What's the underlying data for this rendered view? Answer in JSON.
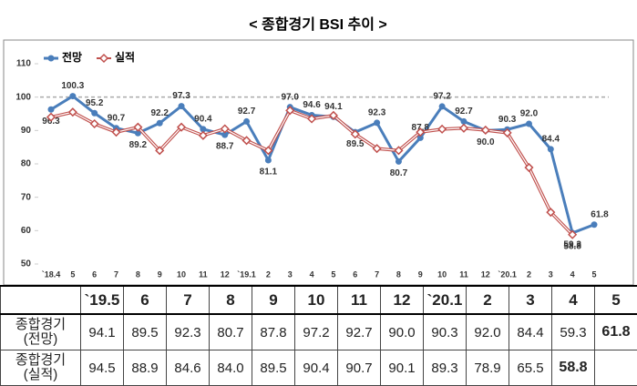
{
  "chart_data": {
    "type": "line",
    "title": "< 종합경기 BSI 추이 >",
    "categories": [
      "`18.4",
      "5",
      "6",
      "7",
      "8",
      "9",
      "10",
      "11",
      "12",
      "`19.1",
      "2",
      "3",
      "4",
      "5",
      "6",
      "7",
      "8",
      "9",
      "10",
      "11",
      "12",
      "`20.1",
      "2",
      "3",
      "4",
      "5"
    ],
    "ylim": [
      50,
      110
    ],
    "yticks": [
      50,
      60,
      70,
      80,
      90,
      100,
      110
    ],
    "reference_line": 100,
    "legend": "top-left",
    "series": [
      {
        "name": "전망",
        "color": "#4a7ebb",
        "marker": "circle",
        "values": [
          96.3,
          100.3,
          95.2,
          90.7,
          89.2,
          92.2,
          97.3,
          90.4,
          88.7,
          92.7,
          81.1,
          97.0,
          94.6,
          94.1,
          89.5,
          92.3,
          80.7,
          87.8,
          97.2,
          92.7,
          90.0,
          90.3,
          92.0,
          84.4,
          59.3,
          61.8
        ],
        "value_labels": [
          "96.3",
          "100.3",
          "95.2",
          "90.7",
          "89.2",
          "92.2",
          "97.3",
          "90.4",
          "88.7",
          "92.7",
          "81.1",
          "97.0",
          "94.6",
          "94.1",
          "89.5",
          "92.3",
          "80.7",
          "87.8",
          "97.2",
          "92.7",
          "90.0",
          "90.3",
          "92.0",
          "84.4",
          "59.3",
          "61.8"
        ]
      },
      {
        "name": "실적",
        "color": "#c0504d",
        "marker": "diamond",
        "values": [
          94.0,
          95.5,
          92.0,
          89.5,
          91.0,
          84.0,
          91.0,
          88.5,
          90.5,
          87.0,
          84.0,
          96.0,
          93.5,
          94.5,
          88.9,
          84.6,
          84.0,
          89.5,
          90.4,
          90.7,
          90.1,
          89.3,
          78.9,
          65.5,
          58.8,
          null
        ],
        "value_labels": [
          null,
          null,
          null,
          null,
          null,
          null,
          null,
          null,
          null,
          null,
          null,
          null,
          null,
          null,
          null,
          null,
          null,
          null,
          null,
          null,
          null,
          null,
          null,
          null,
          "58.8",
          null
        ]
      }
    ]
  },
  "table": {
    "header": [
      "",
      "`19.5",
      "6",
      "7",
      "8",
      "9",
      "10",
      "11",
      "12",
      "`20.1",
      "2",
      "3",
      "4",
      "5"
    ],
    "rows": [
      [
        "종합경기\n(전망)",
        "94.1",
        "89.5",
        "92.3",
        "80.7",
        "87.8",
        "97.2",
        "92.7",
        "90.0",
        "90.3",
        "92.0",
        "84.4",
        "59.3",
        "61.8"
      ],
      [
        "종합경기\n(실적)",
        "94.5",
        "88.9",
        "84.6",
        "84.0",
        "89.5",
        "90.4",
        "90.7",
        "90.1",
        "89.3",
        "78.9",
        "65.5",
        "58.8",
        ""
      ]
    ]
  }
}
